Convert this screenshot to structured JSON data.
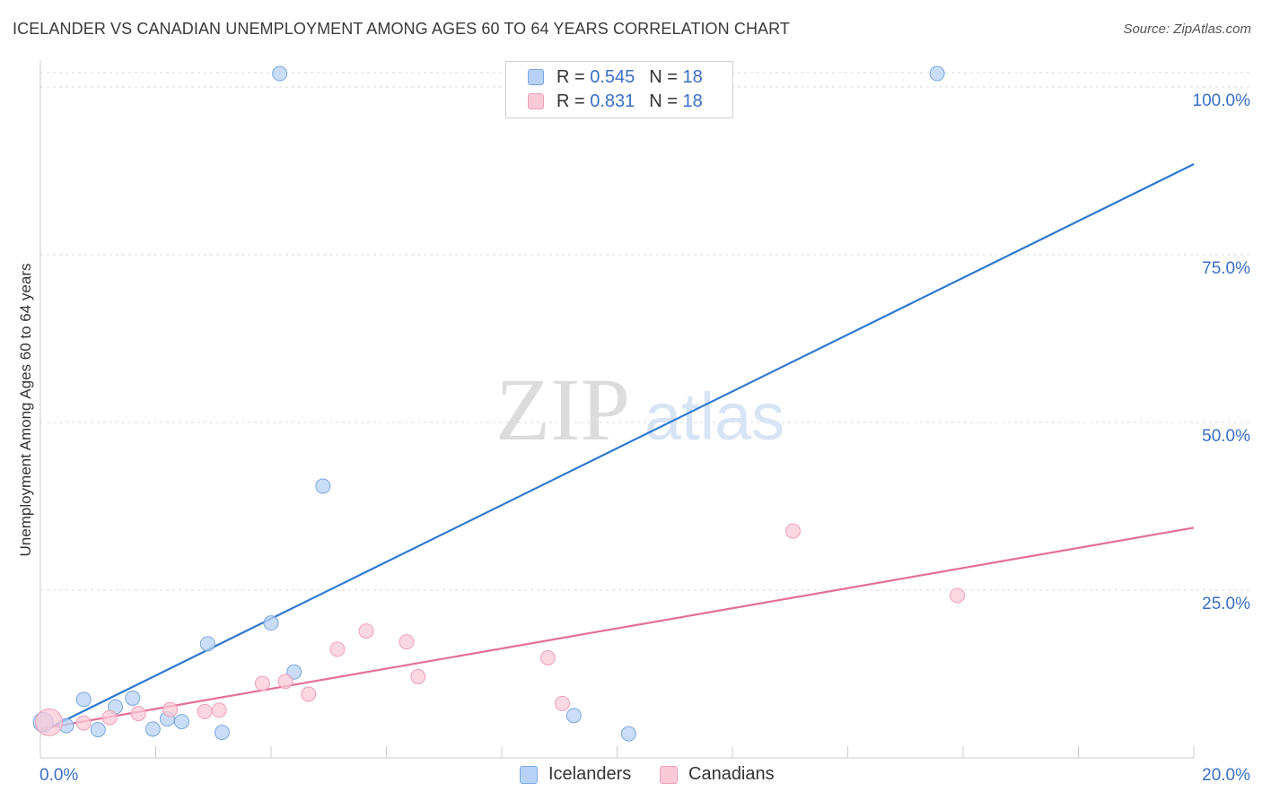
{
  "title": "ICELANDER VS CANADIAN UNEMPLOYMENT AMONG AGES 60 TO 64 YEARS CORRELATION CHART",
  "source": "Source: ZipAtlas.com",
  "watermark": {
    "zip": "ZIP",
    "atlas": "atlas"
  },
  "legend_top": [
    {
      "r_label": "R =",
      "r_value": "0.545",
      "n_label": "N =",
      "n_value": "18"
    },
    {
      "r_label": "R =",
      "r_value": "0.831",
      "n_label": "N =",
      "n_value": "18"
    }
  ],
  "legend_bottom": [
    "Icelanders",
    "Canadians"
  ],
  "colors": {
    "icelanders_fill": "#b8d2f5",
    "icelanders_stroke": "#7aa6e0",
    "icelanders_line": "#2f78cf",
    "canadians_fill": "#f9c9d7",
    "canadians_stroke": "#eea0b8",
    "canadians_line": "#e46f98",
    "axis_label": "#3a6fc4",
    "grid": "#d9d9d9"
  },
  "chart_data": {
    "type": "scatter",
    "title": "ICELANDER VS CANADIAN UNEMPLOYMENT AMONG AGES 60 TO 64 YEARS CORRELATION CHART",
    "xlabel": "",
    "ylabel": "Unemployment Among Ages 60 to 64 years",
    "xlim": [
      0,
      20
    ],
    "ylim": [
      0,
      100
    ],
    "x_tick_labels": [
      "0.0%",
      "20.0%"
    ],
    "y_tick_labels": [
      "25.0%",
      "50.0%",
      "75.0%",
      "100.0%"
    ],
    "y_ticks": [
      25,
      50,
      75,
      100
    ],
    "series": [
      {
        "name": "Icelanders",
        "points": [
          {
            "x": 0.05,
            "y": 5.3
          },
          {
            "x": 0.45,
            "y": 4.8
          },
          {
            "x": 0.75,
            "y": 8.7
          },
          {
            "x": 1.0,
            "y": 4.2
          },
          {
            "x": 1.3,
            "y": 7.6
          },
          {
            "x": 1.6,
            "y": 8.9
          },
          {
            "x": 1.95,
            "y": 4.3
          },
          {
            "x": 2.2,
            "y": 5.8
          },
          {
            "x": 2.45,
            "y": 5.4
          },
          {
            "x": 2.9,
            "y": 17.0
          },
          {
            "x": 3.15,
            "y": 3.8
          },
          {
            "x": 4.0,
            "y": 20.1
          },
          {
            "x": 4.15,
            "y": 102.0
          },
          {
            "x": 4.4,
            "y": 12.8
          },
          {
            "x": 4.9,
            "y": 40.5
          },
          {
            "x": 9.25,
            "y": 6.3
          },
          {
            "x": 10.2,
            "y": 3.6
          },
          {
            "x": 15.55,
            "y": 102.0
          }
        ],
        "trend": {
          "x1": 0.0,
          "y1": 3.8,
          "x2": 20.0,
          "y2": 88.5
        }
      },
      {
        "name": "Canadians",
        "points": [
          {
            "x": 0.15,
            "y": 5.3
          },
          {
            "x": 0.75,
            "y": 5.2
          },
          {
            "x": 1.2,
            "y": 6.0
          },
          {
            "x": 1.7,
            "y": 6.6
          },
          {
            "x": 2.25,
            "y": 7.2
          },
          {
            "x": 2.85,
            "y": 6.9
          },
          {
            "x": 3.1,
            "y": 7.1
          },
          {
            "x": 3.85,
            "y": 11.1
          },
          {
            "x": 4.25,
            "y": 11.4
          },
          {
            "x": 4.65,
            "y": 9.5
          },
          {
            "x": 5.15,
            "y": 16.2
          },
          {
            "x": 5.65,
            "y": 18.9
          },
          {
            "x": 6.35,
            "y": 17.3
          },
          {
            "x": 6.55,
            "y": 12.1
          },
          {
            "x": 8.8,
            "y": 14.9
          },
          {
            "x": 9.05,
            "y": 8.1
          },
          {
            "x": 13.05,
            "y": 33.8
          },
          {
            "x": 15.9,
            "y": 24.2
          }
        ],
        "trend": {
          "x1": 0.0,
          "y1": 4.3,
          "x2": 20.0,
          "y2": 34.3
        }
      }
    ]
  }
}
